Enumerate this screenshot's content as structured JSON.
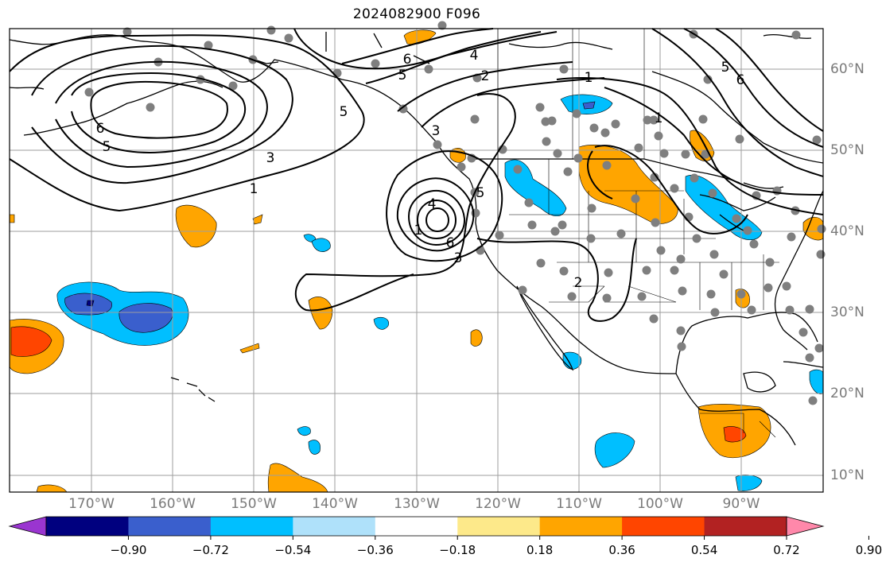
{
  "title": "2024082900 F096",
  "lon_labels": [
    "170°W",
    "160°W",
    "150°W",
    "140°W",
    "130°W",
    "120°W",
    "110°W",
    "100°W",
    "90°W"
  ],
  "lat_labels": [
    "10°N",
    "20°N",
    "30°N",
    "40°N",
    "50°N",
    "60°N"
  ],
  "colorbar": {
    "tick_labels": [
      "−0.90",
      "−0.72",
      "−0.54",
      "−0.36",
      "−0.18",
      "0.18",
      "0.36",
      "0.54",
      "0.72",
      "0.90"
    ],
    "colors": [
      "#9a35d0",
      "#00007f",
      "#3a5fcd",
      "#00bfff",
      "#afe1fa",
      "#ffffff",
      "#fde98a",
      "#ffa500",
      "#ff4500",
      "#b22222",
      "#ff88aa"
    ]
  },
  "contour_labels": [
    "6",
    "5",
    "4",
    "2",
    "1",
    "3",
    "1",
    "5",
    "6",
    "5",
    "4",
    "1",
    "6",
    "3",
    "5",
    "2",
    "1",
    "6",
    "5",
    "3"
  ],
  "shading_colors": {
    "orange": "#ffa500",
    "red_orange": "#ff4500",
    "blue": "#00bfff",
    "royal_blue": "#3a5fcd",
    "navy": "#00007f"
  }
}
